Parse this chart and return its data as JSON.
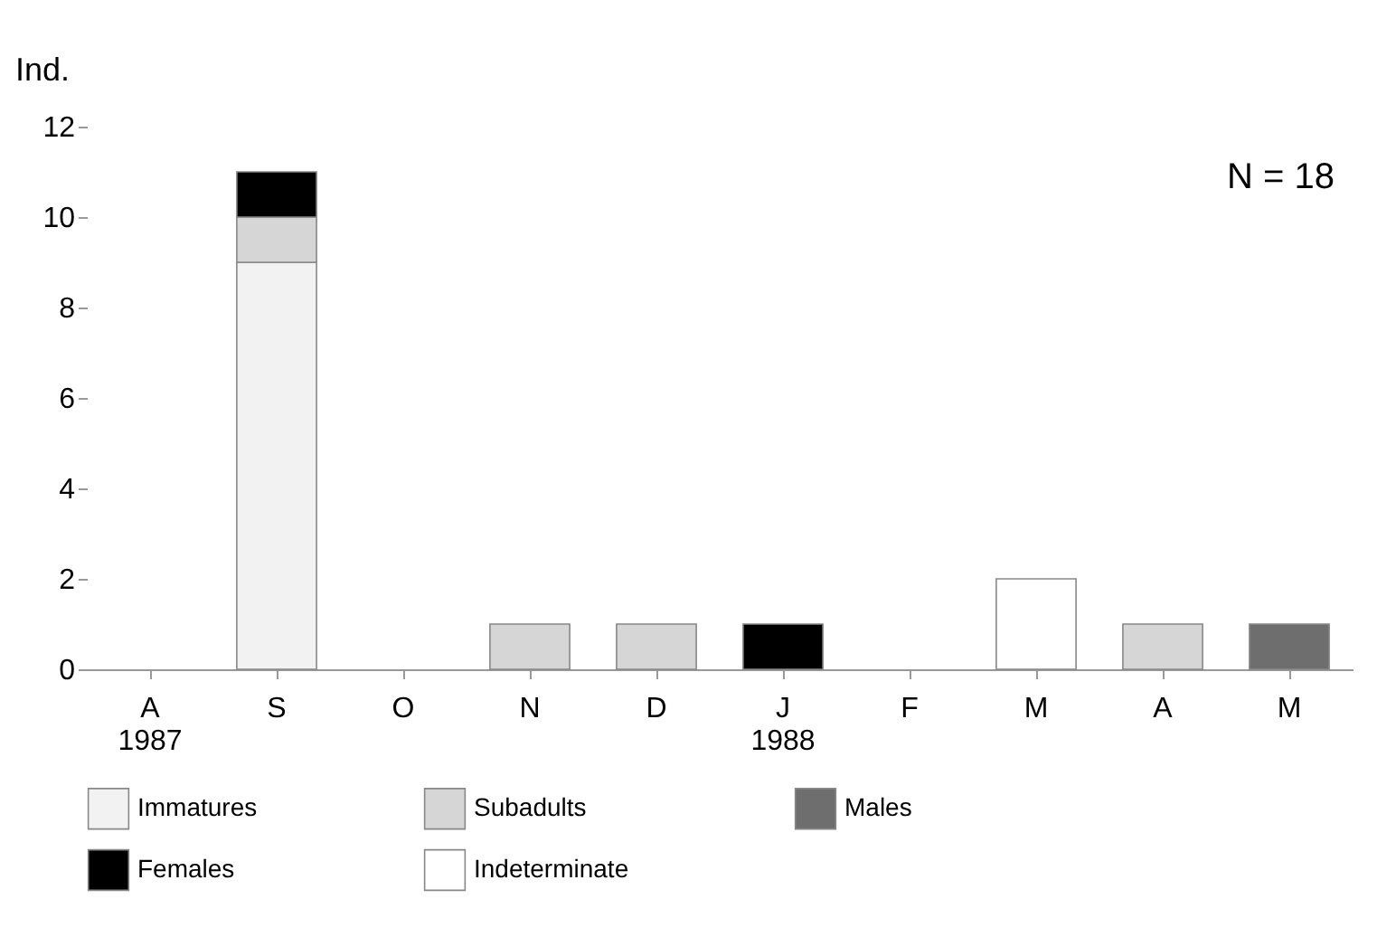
{
  "chart_data": {
    "type": "bar",
    "stacked": true,
    "ylabel": "Ind.",
    "categories": [
      "A\n1987",
      "S",
      "O",
      "N",
      "D",
      "J\n1988",
      "F",
      "M",
      "A",
      "M"
    ],
    "series": [
      {
        "name": "Immatures",
        "color": "#f2f2f2",
        "values": [
          null,
          9,
          null,
          null,
          null,
          null,
          null,
          null,
          null,
          null
        ]
      },
      {
        "name": "Subadults",
        "color": "#d6d6d6",
        "values": [
          null,
          1,
          null,
          1,
          1,
          null,
          null,
          null,
          1,
          null
        ]
      },
      {
        "name": "Males",
        "color": "#6e6e6e",
        "values": [
          null,
          null,
          null,
          null,
          null,
          null,
          null,
          null,
          null,
          1
        ]
      },
      {
        "name": "Females",
        "color": "#000000",
        "values": [
          null,
          1,
          null,
          null,
          null,
          1,
          null,
          null,
          null,
          null
        ]
      },
      {
        "name": "Indeterminate",
        "color": "#ffffff",
        "values": [
          null,
          null,
          null,
          null,
          null,
          null,
          null,
          2,
          null,
          null
        ]
      }
    ],
    "ylim": [
      0,
      12
    ],
    "yticks": [
      0,
      2,
      4,
      6,
      8,
      10,
      12
    ],
    "grid": false,
    "legend": "bottom",
    "annotations": [
      "N = 18"
    ]
  }
}
